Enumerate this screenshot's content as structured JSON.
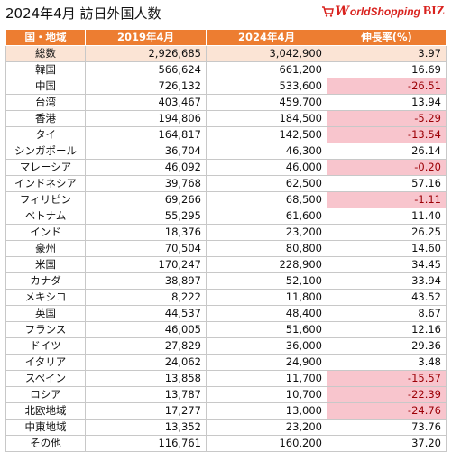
{
  "title": "2024年4月  訪日外国人数",
  "logo": {
    "w": "W",
    "word": "orldShopping",
    "biz": "BIZ"
  },
  "colors": {
    "header_bg": "#ed7d31",
    "total_bg": "#fbe4d5",
    "negative_bg": "#f8c5cd",
    "negative_text": "#9c0006",
    "logo_red": "#d9231f"
  },
  "table": {
    "headers": [
      "国・地域",
      "2019年4月",
      "2024年4月",
      "伸長率(%)"
    ],
    "rows": [
      {
        "country": "総数",
        "y2019": "2,926,685",
        "y2024": "3,042,900",
        "growth": "3.97",
        "neg": false
      },
      {
        "country": "韓国",
        "y2019": "566,624",
        "y2024": "661,200",
        "growth": "16.69",
        "neg": false
      },
      {
        "country": "中国",
        "y2019": "726,132",
        "y2024": "533,600",
        "growth": "-26.51",
        "neg": true
      },
      {
        "country": "台湾",
        "y2019": "403,467",
        "y2024": "459,700",
        "growth": "13.94",
        "neg": false
      },
      {
        "country": "香港",
        "y2019": "194,806",
        "y2024": "184,500",
        "growth": "-5.29",
        "neg": true
      },
      {
        "country": "タイ",
        "y2019": "164,817",
        "y2024": "142,500",
        "growth": "-13.54",
        "neg": true
      },
      {
        "country": "シンガポール",
        "y2019": "36,704",
        "y2024": "46,300",
        "growth": "26.14",
        "neg": false
      },
      {
        "country": "マレーシア",
        "y2019": "46,092",
        "y2024": "46,000",
        "growth": "-0.20",
        "neg": true
      },
      {
        "country": "インドネシア",
        "y2019": "39,768",
        "y2024": "62,500",
        "growth": "57.16",
        "neg": false
      },
      {
        "country": "フィリピン",
        "y2019": "69,266",
        "y2024": "68,500",
        "growth": "-1.11",
        "neg": true
      },
      {
        "country": "ベトナム",
        "y2019": "55,295",
        "y2024": "61,600",
        "growth": "11.40",
        "neg": false
      },
      {
        "country": "インド",
        "y2019": "18,376",
        "y2024": "23,200",
        "growth": "26.25",
        "neg": false
      },
      {
        "country": "豪州",
        "y2019": "70,504",
        "y2024": "80,800",
        "growth": "14.60",
        "neg": false
      },
      {
        "country": "米国",
        "y2019": "170,247",
        "y2024": "228,900",
        "growth": "34.45",
        "neg": false
      },
      {
        "country": "カナダ",
        "y2019": "38,897",
        "y2024": "52,100",
        "growth": "33.94",
        "neg": false
      },
      {
        "country": "メキシコ",
        "y2019": "8,222",
        "y2024": "11,800",
        "growth": "43.52",
        "neg": false
      },
      {
        "country": "英国",
        "y2019": "44,537",
        "y2024": "48,400",
        "growth": "8.67",
        "neg": false
      },
      {
        "country": "フランス",
        "y2019": "46,005",
        "y2024": "51,600",
        "growth": "12.16",
        "neg": false
      },
      {
        "country": "ドイツ",
        "y2019": "27,829",
        "y2024": "36,000",
        "growth": "29.36",
        "neg": false
      },
      {
        "country": "イタリア",
        "y2019": "24,062",
        "y2024": "24,900",
        "growth": "3.48",
        "neg": false
      },
      {
        "country": "スペイン",
        "y2019": "13,858",
        "y2024": "11,700",
        "growth": "-15.57",
        "neg": true
      },
      {
        "country": "ロシア",
        "y2019": "13,787",
        "y2024": "10,700",
        "growth": "-22.39",
        "neg": true
      },
      {
        "country": "北欧地域",
        "y2019": "17,277",
        "y2024": "13,000",
        "growth": "-24.76",
        "neg": true
      },
      {
        "country": "中東地域",
        "y2019": "13,352",
        "y2024": "23,200",
        "growth": "73.76",
        "neg": false
      },
      {
        "country": "その他",
        "y2019": "116,761",
        "y2024": "160,200",
        "growth": "37.20",
        "neg": false
      }
    ]
  }
}
